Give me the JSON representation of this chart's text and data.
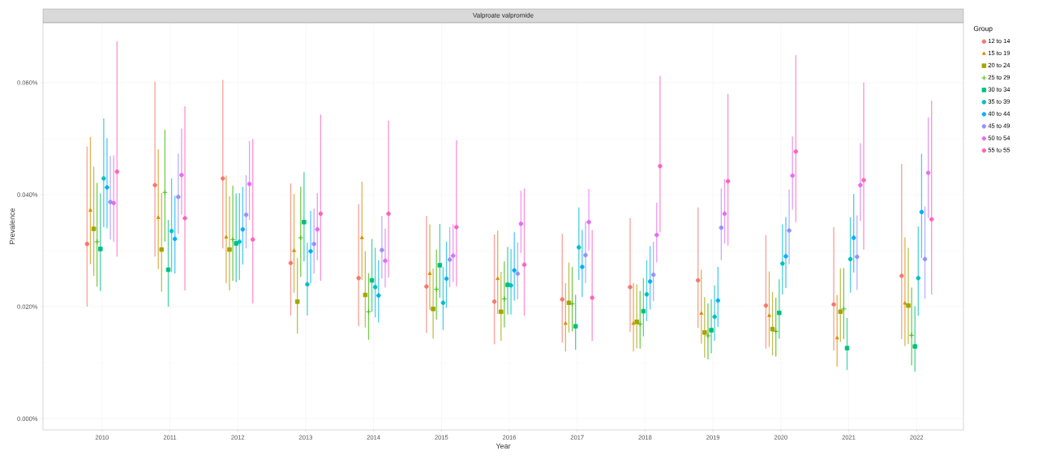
{
  "chart_data": {
    "type": "scatter",
    "title": "Valproate valpromide",
    "xlabel": "Year",
    "ylabel": "Prevalence",
    "legend_title": "Group",
    "legend": "right",
    "grid": true,
    "categories": [
      "2010",
      "2011",
      "2012",
      "2013",
      "2014",
      "2015",
      "2016",
      "2017",
      "2018",
      "2019",
      "2020",
      "2021",
      "2022"
    ],
    "ylim": [
      -0.002,
      0.0707
    ],
    "yticks": [
      {
        "value": 0,
        "label": "0.000%"
      },
      {
        "value": 0.02,
        "label": "0.020%"
      },
      {
        "value": 0.04,
        "label": "0.040%"
      },
      {
        "value": 0.06,
        "label": "0.060%"
      }
    ],
    "series": [
      {
        "name": "12 to 14",
        "color": "#f8766d",
        "marker": "circle",
        "values": [
          0.0312,
          0.0417,
          0.0429,
          0.0278,
          0.0251,
          0.0236,
          0.0209,
          0.0213,
          0.0235,
          0.0247,
          0.0202,
          0.0204,
          0.0255
        ],
        "errors": [
          [
            0.02,
            0.0486
          ],
          [
            0.0289,
            0.0602
          ],
          [
            0.0304,
            0.0605
          ],
          [
            0.0184,
            0.042
          ],
          [
            0.0165,
            0.0383
          ],
          [
            0.0153,
            0.0362
          ],
          [
            0.0133,
            0.0329
          ],
          [
            0.0136,
            0.033
          ],
          [
            0.0155,
            0.0358
          ],
          [
            0.0162,
            0.0377
          ],
          [
            0.0125,
            0.0328
          ],
          [
            0.0122,
            0.0342
          ],
          [
            0.0142,
            0.0455
          ]
        ]
      },
      {
        "name": "15 to 19",
        "color": "#d89000",
        "marker": "triangle",
        "values": [
          0.0372,
          0.0359,
          0.0324,
          0.03,
          0.0323,
          0.0259,
          0.025,
          0.017,
          0.017,
          0.0188,
          0.0184,
          0.0144,
          0.0206
        ],
        "errors": [
          [
            0.0276,
            0.0503
          ],
          [
            0.0267,
            0.0481
          ],
          [
            0.0242,
            0.0434
          ],
          [
            0.0225,
            0.0401
          ],
          [
            0.0248,
            0.0423
          ],
          [
            0.0194,
            0.0347
          ],
          [
            0.0187,
            0.0336
          ],
          [
            0.012,
            0.0242
          ],
          [
            0.012,
            0.0242
          ],
          [
            0.0134,
            0.0266
          ],
          [
            0.0128,
            0.0263
          ],
          [
            0.0093,
            0.0221
          ],
          [
            0.013,
            0.0324
          ]
        ]
      },
      {
        "name": "20 to 24",
        "color": "#a3a500",
        "marker": "square",
        "values": [
          0.0339,
          0.0302,
          0.0302,
          0.0209,
          0.0221,
          0.0196,
          0.0191,
          0.0207,
          0.0173,
          0.0154,
          0.016,
          0.0191,
          0.0202
        ],
        "errors": [
          [
            0.0255,
            0.045
          ],
          [
            0.0227,
            0.0403
          ],
          [
            0.0229,
            0.0397
          ],
          [
            0.0152,
            0.0287
          ],
          [
            0.0163,
            0.0299
          ],
          [
            0.0143,
            0.0268
          ],
          [
            0.0139,
            0.0262
          ],
          [
            0.0154,
            0.0279
          ],
          [
            0.0126,
            0.024
          ],
          [
            0.0109,
            0.0217
          ],
          [
            0.0113,
            0.0226
          ],
          [
            0.0137,
            0.0268
          ],
          [
            0.0133,
            0.0305
          ]
        ]
      },
      {
        "name": "25 to 29",
        "color": "#39b600",
        "marker": "cross",
        "values": [
          0.0316,
          0.0404,
          0.032,
          0.0323,
          0.0191,
          0.0231,
          0.0214,
          0.0205,
          0.0169,
          0.0148,
          0.0156,
          0.0196,
          0.0149
        ],
        "errors": [
          [
            0.0236,
            0.0421
          ],
          [
            0.0316,
            0.0516
          ],
          [
            0.0246,
            0.0416
          ],
          [
            0.0253,
            0.0414
          ],
          [
            0.0141,
            0.026
          ],
          [
            0.0177,
            0.0302
          ],
          [
            0.0163,
            0.0281
          ],
          [
            0.0156,
            0.0271
          ],
          [
            0.0125,
            0.0228
          ],
          [
            0.0106,
            0.0206
          ],
          [
            0.0111,
            0.0216
          ],
          [
            0.0142,
            0.0269
          ],
          [
            0.0095,
            0.0234
          ]
        ]
      },
      {
        "name": "30 to 34",
        "color": "#00bf7d",
        "marker": "square",
        "values": [
          0.0303,
          0.0266,
          0.0313,
          0.0351,
          0.0247,
          0.0274,
          0.0239,
          0.0165,
          0.0192,
          0.0158,
          0.0189,
          0.0126,
          0.0129
        ],
        "errors": [
          [
            0.0228,
            0.0402
          ],
          [
            0.02,
            0.0355
          ],
          [
            0.0244,
            0.0402
          ],
          [
            0.0281,
            0.044
          ],
          [
            0.0191,
            0.0321
          ],
          [
            0.0216,
            0.0348
          ],
          [
            0.0186,
            0.0307
          ],
          [
            0.0123,
            0.0221
          ],
          [
            0.0147,
            0.0251
          ],
          [
            0.0117,
            0.0213
          ],
          [
            0.0143,
            0.0249
          ],
          [
            0.0087,
            0.018
          ],
          [
            0.0084,
            0.0201
          ]
        ]
      },
      {
        "name": "35 to 39",
        "color": "#00bfc4",
        "marker": "circle",
        "values": [
          0.0429,
          0.0335,
          0.0316,
          0.024,
          0.0235,
          0.0207,
          0.0238,
          0.0306,
          0.0222,
          0.0182,
          0.0277,
          0.0285,
          0.0251
        ],
        "errors": [
          [
            0.0342,
            0.0536
          ],
          [
            0.0262,
            0.0429
          ],
          [
            0.0248,
            0.0403
          ],
          [
            0.0184,
            0.0314
          ],
          [
            0.0181,
            0.0305
          ],
          [
            0.0158,
            0.0271
          ],
          [
            0.0186,
            0.0303
          ],
          [
            0.0248,
            0.0377
          ],
          [
            0.0174,
            0.0283
          ],
          [
            0.0139,
            0.0238
          ],
          [
            0.0222,
            0.0347
          ],
          [
            0.0225,
            0.036
          ],
          [
            0.0184,
            0.0343
          ]
        ]
      },
      {
        "name": "40 to 44",
        "color": "#00b0f6",
        "marker": "circle",
        "values": [
          0.0413,
          0.0321,
          0.0338,
          0.0299,
          0.022,
          0.025,
          0.0265,
          0.0271,
          0.0245,
          0.0211,
          0.029,
          0.0323,
          0.0369
        ],
        "errors": [
          [
            0.034,
            0.0501
          ],
          [
            0.0259,
            0.0398
          ],
          [
            0.0275,
            0.0414
          ],
          [
            0.0242,
            0.0371
          ],
          [
            0.0172,
            0.0283
          ],
          [
            0.0198,
            0.0316
          ],
          [
            0.0211,
            0.0333
          ],
          [
            0.0217,
            0.0337
          ],
          [
            0.0195,
            0.0308
          ],
          [
            0.0164,
            0.0271
          ],
          [
            0.0233,
            0.036
          ],
          [
            0.0261,
            0.0401
          ],
          [
            0.0287,
            0.0473
          ]
        ]
      },
      {
        "name": "45 to 49",
        "color": "#9590ff",
        "marker": "circle",
        "values": [
          0.0387,
          0.0396,
          0.0364,
          0.0312,
          0.0301,
          0.0284,
          0.0259,
          0.0292,
          0.0257,
          0.0341,
          0.0336,
          0.0289,
          0.0285
        ],
        "errors": [
          [
            0.032,
            0.0469
          ],
          [
            0.033,
            0.0473
          ],
          [
            0.0304,
            0.0435
          ],
          [
            0.0259,
            0.0375
          ],
          [
            0.025,
            0.0362
          ],
          [
            0.0235,
            0.0342
          ],
          [
            0.0213,
            0.0315
          ],
          [
            0.0242,
            0.0352
          ],
          [
            0.021,
            0.0316
          ],
          [
            0.0283,
            0.0411
          ],
          [
            0.0276,
            0.0409
          ],
          [
            0.023,
            0.0363
          ],
          [
            0.0214,
            0.0379
          ]
        ]
      },
      {
        "name": "50 to 54",
        "color": "#e76bf3",
        "marker": "circle",
        "values": [
          0.0385,
          0.0435,
          0.0419,
          0.0338,
          0.0282,
          0.0291,
          0.0348,
          0.0351,
          0.0328,
          0.0366,
          0.0434,
          0.0417,
          0.0439
        ],
        "errors": [
          [
            0.0316,
            0.047
          ],
          [
            0.0364,
            0.0518
          ],
          [
            0.0355,
            0.0496
          ],
          [
            0.0283,
            0.0403
          ],
          [
            0.0234,
            0.0339
          ],
          [
            0.0244,
            0.0347
          ],
          [
            0.0296,
            0.0407
          ],
          [
            0.03,
            0.041
          ],
          [
            0.0279,
            0.0386
          ],
          [
            0.0313,
            0.0428
          ],
          [
            0.0373,
            0.0504
          ],
          [
            0.0353,
            0.0492
          ],
          [
            0.0358,
            0.0538
          ]
        ]
      },
      {
        "name": "55 to 55",
        "color": "#ff62bc",
        "marker": "circle",
        "values": [
          0.0441,
          0.0358,
          0.032,
          0.0366,
          0.0366,
          0.0342,
          0.0275,
          0.0216,
          0.0451,
          0.0424,
          0.0477,
          0.0426,
          0.0356
        ],
        "errors": [
          [
            0.0289,
            0.0674
          ],
          [
            0.0229,
            0.0558
          ],
          [
            0.0206,
            0.0499
          ],
          [
            0.0246,
            0.0543
          ],
          [
            0.0252,
            0.0532
          ],
          [
            0.0236,
            0.0497
          ],
          [
            0.0184,
            0.0411
          ],
          [
            0.0139,
            0.0337
          ],
          [
            0.0333,
            0.0612
          ],
          [
            0.0309,
            0.058
          ],
          [
            0.0351,
            0.0649
          ],
          [
            0.0302,
            0.06
          ],
          [
            0.0222,
            0.0568
          ]
        ]
      }
    ]
  }
}
